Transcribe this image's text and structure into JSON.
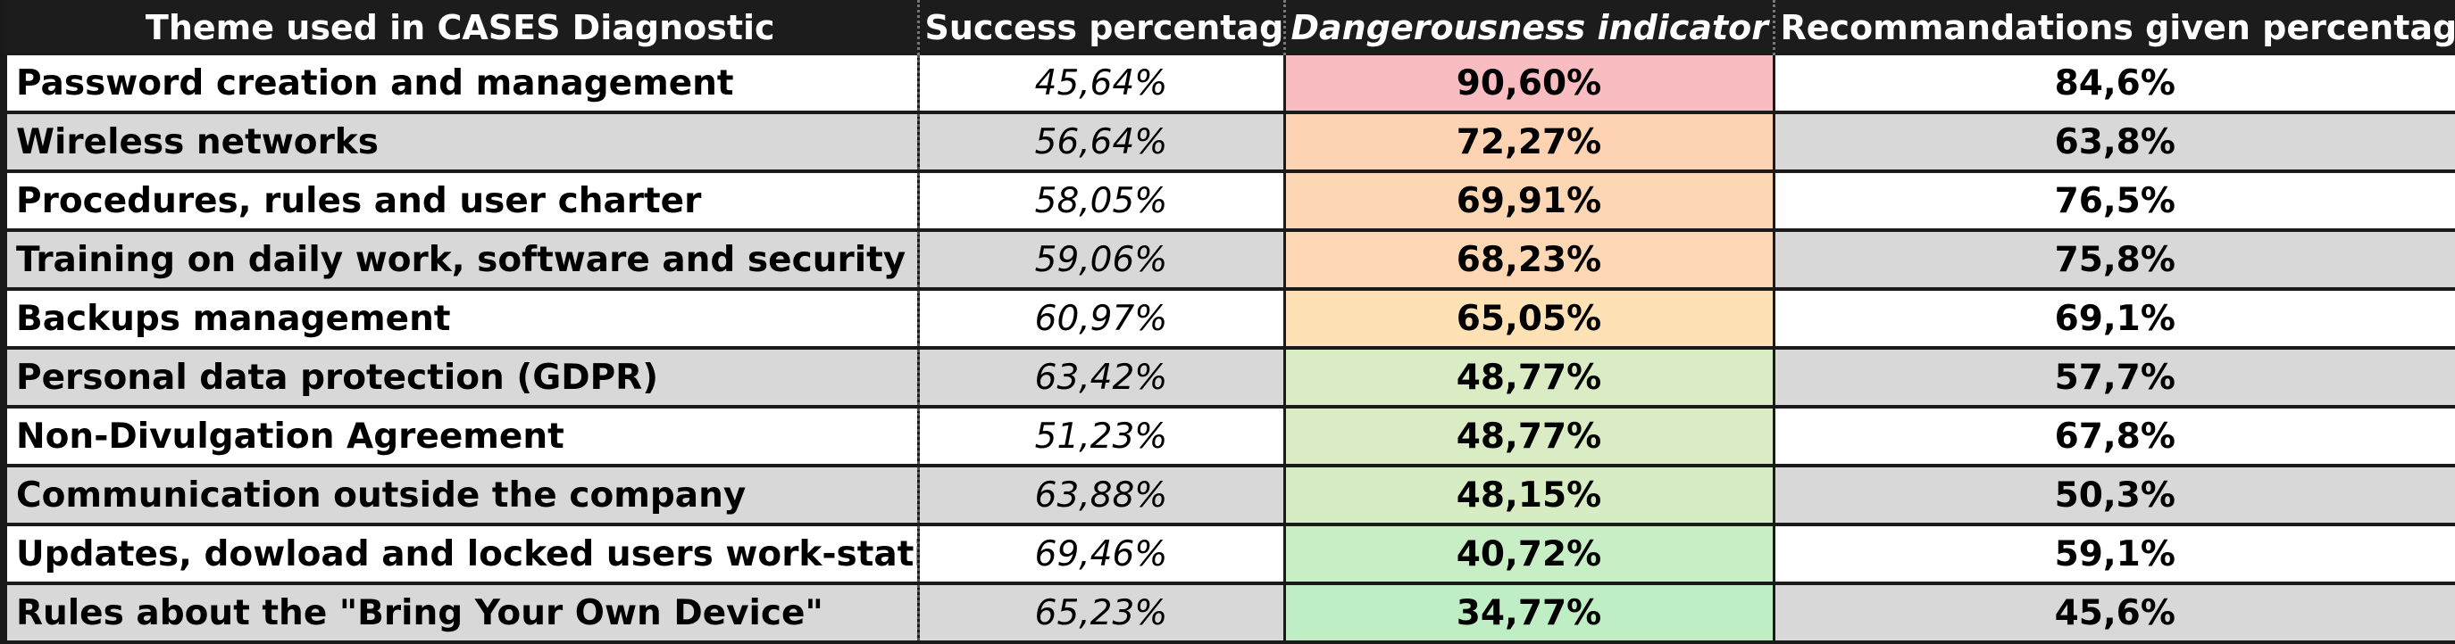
{
  "chart_data": {
    "type": "table",
    "columns": [
      "Theme used in CASES Diagnostic",
      "Success percentage",
      "Dangerousness indicator",
      "Recommandations given percentage"
    ],
    "rows": [
      {
        "theme": "Password creation and management",
        "success": "45,64%",
        "danger": "90,60%",
        "danger_color": "#f9bcc0",
        "reco": "84,6%"
      },
      {
        "theme": "Wireless networks",
        "success": "56,64%",
        "danger": "72,27%",
        "danger_color": "#fdd3b3",
        "reco": "63,8%"
      },
      {
        "theme": "Procedures, rules and user charter",
        "success": "58,05%",
        "danger": "69,91%",
        "danger_color": "#fdd6b4",
        "reco": "76,5%"
      },
      {
        "theme": "Training on daily work, software and security",
        "success": "59,06%",
        "danger": "68,23%",
        "danger_color": "#fed8b5",
        "reco": "75,8%"
      },
      {
        "theme": "Backups management",
        "success": "60,97%",
        "danger": "65,05%",
        "danger_color": "#fee2b6",
        "reco": "69,1%"
      },
      {
        "theme": "Personal data protection (GDPR)",
        "success": "63,42%",
        "danger": "48,77%",
        "danger_color": "#d9ecc3",
        "reco": "57,7%"
      },
      {
        "theme": "Non-Divulgation Agreement",
        "success": "51,23%",
        "danger": "48,77%",
        "danger_color": "#d9ecc3",
        "reco": "67,8%"
      },
      {
        "theme": "Communication outside the company",
        "success": "63,88%",
        "danger": "48,15%",
        "danger_color": "#d7ecc3",
        "reco": "50,3%"
      },
      {
        "theme": "Updates, dowload and locked users work-station",
        "success": "69,46%",
        "danger": "40,72%",
        "danger_color": "#c8eec6",
        "reco": "59,1%"
      },
      {
        "theme": "Rules about the \"Bring Your Own Device\"",
        "success": "65,23%",
        "danger": "34,77%",
        "danger_color": "#bfeec4",
        "reco": "45,6%"
      }
    ]
  }
}
